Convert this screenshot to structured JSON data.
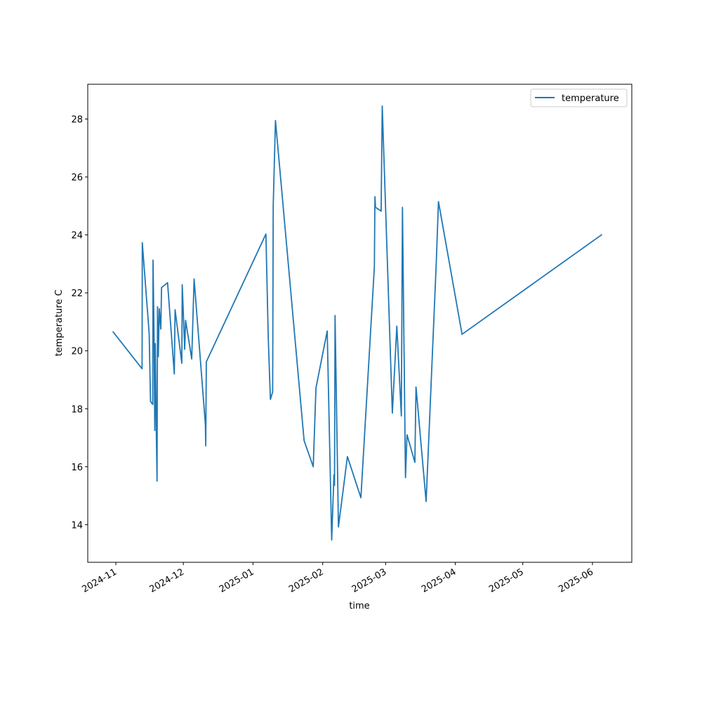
{
  "chart_data": {
    "type": "line",
    "title": "",
    "xlabel": "time",
    "ylabel": "temperature C",
    "x_ticks": [
      "2024-11-01",
      "2024-12-01",
      "2025-01-01",
      "2025-02-01",
      "2025-03-01",
      "2025-04-01",
      "2025-05-01",
      "2025-06-01"
    ],
    "x_tick_labels": [
      "2024-11",
      "2024-12",
      "2025-01",
      "2025-02",
      "2025-03",
      "2025-04",
      "2025-05",
      "2025-06"
    ],
    "y_ticks": [
      14,
      16,
      18,
      20,
      22,
      24,
      26,
      28
    ],
    "xlim": [
      "2024-10-19T12:00",
      "2025-06-18T12:00"
    ],
    "ylim": [
      12.7,
      29.2
    ],
    "grid": false,
    "legend": "upper right",
    "series": [
      {
        "name": "temperature",
        "color": "#1f77b4",
        "points": [
          [
            "2024-10-30T19:00",
            20.65
          ],
          [
            "2024-11-12T16:00",
            19.38
          ],
          [
            "2024-11-12T18:00",
            23.73
          ],
          [
            "2024-11-15T20:00",
            20.6
          ],
          [
            "2024-11-16T10:00",
            18.25
          ],
          [
            "2024-11-17T10:00",
            18.15
          ],
          [
            "2024-11-17T13:00",
            23.13
          ],
          [
            "2024-11-18T00:00",
            20.4
          ],
          [
            "2024-11-18T08:00",
            17.25
          ],
          [
            "2024-11-18T13:00",
            20.25
          ],
          [
            "2024-11-19T00:00",
            17.2
          ],
          [
            "2024-11-19T08:00",
            15.5
          ],
          [
            "2024-11-19T13:00",
            21.52
          ],
          [
            "2024-11-19T21:00",
            19.8
          ],
          [
            "2024-11-20T08:00",
            21.45
          ],
          [
            "2024-11-21T00:00",
            20.75
          ],
          [
            "2024-11-21T08:00",
            22.18
          ],
          [
            "2024-11-24T00:00",
            22.35
          ],
          [
            "2024-11-27T00:00",
            19.2
          ],
          [
            "2024-11-27T08:00",
            21.42
          ],
          [
            "2024-11-30T08:00",
            19.57
          ],
          [
            "2024-11-30T13:00",
            22.28
          ],
          [
            "2024-12-01T15:00",
            20.05
          ],
          [
            "2024-12-02T01:00",
            21.05
          ],
          [
            "2024-12-04T18:00",
            19.72
          ],
          [
            "2024-12-05T19:00",
            22.48
          ],
          [
            "2024-12-10T20:00",
            17.45
          ],
          [
            "2024-12-11T00:00",
            16.72
          ],
          [
            "2024-12-11T06:00",
            19.62
          ],
          [
            "2025-01-06T18:00",
            24.03
          ],
          [
            "2025-01-07T19:00",
            20.48
          ],
          [
            "2025-01-08T18:00",
            18.32
          ],
          [
            "2025-01-09T18:00",
            18.58
          ],
          [
            "2025-01-10T00:00",
            25.0
          ],
          [
            "2025-01-11T00:00",
            27.95
          ],
          [
            "2025-01-23T18:00",
            16.9
          ],
          [
            "2025-01-27T19:00",
            16.0
          ],
          [
            "2025-01-29T00:00",
            18.72
          ],
          [
            "2025-02-03T00:00",
            20.68
          ],
          [
            "2025-02-05T00:00",
            13.47
          ],
          [
            "2025-02-06T00:00",
            15.72
          ],
          [
            "2025-02-06T06:00",
            15.35
          ],
          [
            "2025-02-06T12:00",
            21.22
          ],
          [
            "2025-02-08T00:00",
            13.92
          ],
          [
            "2025-02-12T00:00",
            16.35
          ],
          [
            "2025-02-18T00:00",
            14.93
          ],
          [
            "2025-02-24T00:00",
            22.9
          ],
          [
            "2025-02-24T06:00",
            25.32
          ],
          [
            "2025-02-24T12:00",
            24.95
          ],
          [
            "2025-02-27T00:00",
            24.82
          ],
          [
            "2025-02-27T12:00",
            28.45
          ],
          [
            "2025-03-04T00:00",
            17.85
          ],
          [
            "2025-03-06T00:00",
            20.85
          ],
          [
            "2025-03-08T00:00",
            17.75
          ],
          [
            "2025-03-08T12:00",
            24.95
          ],
          [
            "2025-03-09T20:00",
            15.62
          ],
          [
            "2025-03-10T12:00",
            17.1
          ],
          [
            "2025-03-14T00:00",
            16.15
          ],
          [
            "2025-03-14T12:00",
            18.75
          ],
          [
            "2025-03-19T00:00",
            14.8
          ],
          [
            "2025-03-23T12:00",
            23.0
          ],
          [
            "2025-03-24T12:00",
            25.15
          ],
          [
            "2025-04-04T00:00",
            20.57
          ],
          [
            "2025-06-05T00:00",
            24.0
          ]
        ]
      }
    ]
  }
}
